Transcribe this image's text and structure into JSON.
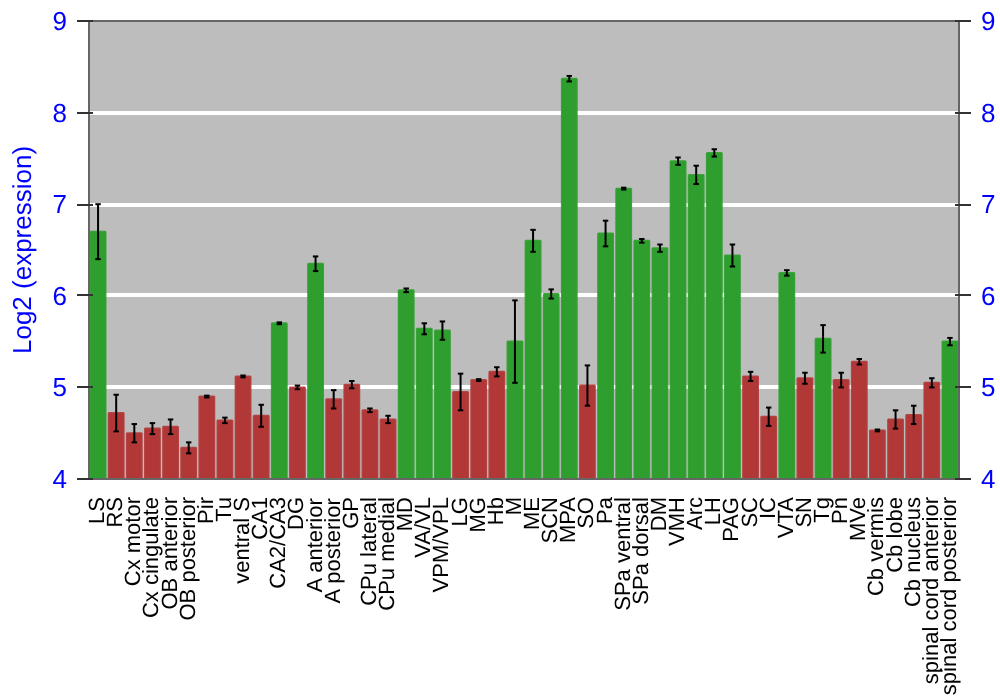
{
  "chart_data": {
    "type": "bar",
    "ylabel": "Log2 (expression)",
    "categories": [
      "LS",
      "RS",
      "Cx motor",
      "Cx cingulate",
      "OB anterior",
      "OB posterior",
      "Pir",
      "Tu",
      "ventral S",
      "CA1",
      "CA2/CA3",
      "DG",
      "A anterior",
      "A posterior",
      "GP",
      "CPu lateral",
      "CPu medial",
      "MD",
      "VA/VL",
      "VPM/VPL",
      "LG",
      "MG",
      "Hb",
      "M",
      "ME",
      "SCN",
      "MPA",
      "SO",
      "Pa",
      "SPa ventral",
      "SPa dorsal",
      "DM",
      "VMH",
      "Arc",
      "LH",
      "PAG",
      "SC",
      "IC",
      "VTA",
      "SN",
      "Tg",
      "Pn",
      "MVe",
      "Cb vermis",
      "Cb lobe",
      "Cb nucleus",
      "spinal cord anterior",
      "spinal cord posterior"
    ],
    "values": [
      6.7,
      4.72,
      4.5,
      4.55,
      4.57,
      4.34,
      4.9,
      4.64,
      5.12,
      4.69,
      5.7,
      5.0,
      6.35,
      4.87,
      5.03,
      4.75,
      4.65,
      6.06,
      5.64,
      5.62,
      4.95,
      5.08,
      5.17,
      5.5,
      6.6,
      6.02,
      8.37,
      5.02,
      6.68,
      7.17,
      6.6,
      6.52,
      7.47,
      7.32,
      7.56,
      6.44,
      5.12,
      4.68,
      6.25,
      5.1,
      5.53,
      5.08,
      5.28,
      4.53,
      4.65,
      4.7,
      5.05,
      5.5
    ],
    "errors": [
      0.3,
      0.2,
      0.1,
      0.06,
      0.08,
      0.06,
      0.01,
      0.03,
      0.01,
      0.12,
      0.01,
      0.02,
      0.08,
      0.1,
      0.04,
      0.02,
      0.04,
      0.02,
      0.06,
      0.1,
      0.2,
      0.01,
      0.05,
      0.45,
      0.12,
      0.05,
      0.03,
      0.22,
      0.14,
      0.01,
      0.02,
      0.04,
      0.04,
      0.1,
      0.04,
      0.12,
      0.05,
      0.1,
      0.03,
      0.06,
      0.15,
      0.08,
      0.03,
      0.01,
      0.1,
      0.1,
      0.05,
      0.04
    ],
    "colors": [
      "#2e9e2e",
      "#b23838",
      "#b23838",
      "#b23838",
      "#b23838",
      "#b23838",
      "#b23838",
      "#b23838",
      "#b23838",
      "#b23838",
      "#2e9e2e",
      "#b23838",
      "#2e9e2e",
      "#b23838",
      "#b23838",
      "#b23838",
      "#b23838",
      "#2e9e2e",
      "#2e9e2e",
      "#2e9e2e",
      "#b23838",
      "#b23838",
      "#b23838",
      "#2e9e2e",
      "#2e9e2e",
      "#2e9e2e",
      "#2e9e2e",
      "#b23838",
      "#2e9e2e",
      "#2e9e2e",
      "#2e9e2e",
      "#2e9e2e",
      "#2e9e2e",
      "#2e9e2e",
      "#2e9e2e",
      "#2e9e2e",
      "#b23838",
      "#b23838",
      "#2e9e2e",
      "#b23838",
      "#2e9e2e",
      "#b23838",
      "#b23838",
      "#b23838",
      "#b23838",
      "#b23838",
      "#b23838",
      "#2e9e2e"
    ],
    "ylim": [
      4,
      9
    ],
    "yticks": [
      4,
      5,
      6,
      7,
      8,
      9
    ],
    "y2lim": [
      4,
      9
    ],
    "y2ticks": [
      4,
      5,
      6,
      7,
      8,
      9
    ],
    "grid": "y"
  }
}
